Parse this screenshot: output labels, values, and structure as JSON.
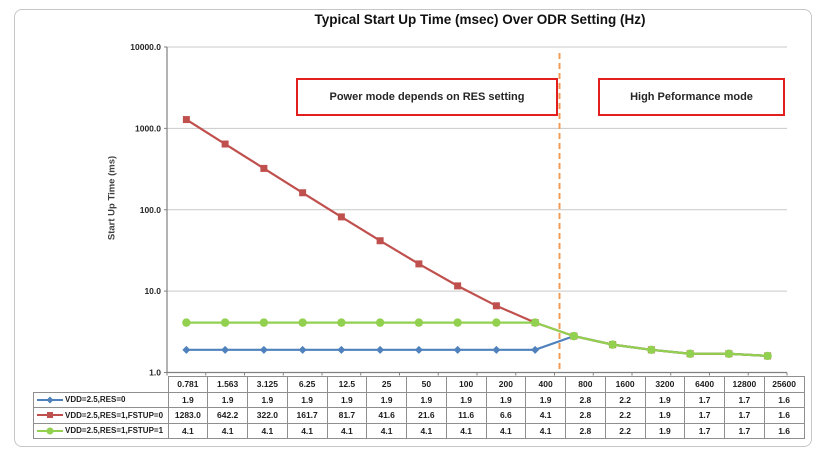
{
  "chart": {
    "title": "Typical Start Up Time (msec) Over ODR Setting (Hz)",
    "ylabel": "Start Up Time (ms)"
  },
  "annotations": {
    "left_box": "Power mode depends on RES setting",
    "right_box": "High Peformance mode"
  },
  "chart_data": {
    "type": "line",
    "title": "Typical Start Up Time (msec) Over ODR Setting (Hz)",
    "xlabel": "",
    "ylabel": "Start Up Time (ms)",
    "x_categories": [
      "0.781",
      "1.563",
      "3.125",
      "6.25",
      "12.5",
      "25",
      "50",
      "100",
      "200",
      "400",
      "800",
      "1600",
      "3200",
      "6400",
      "12800",
      "25600"
    ],
    "y_axis": {
      "scale": "log",
      "min": 1.0,
      "max": 10000.0,
      "tick_labels": [
        "10000.0",
        "1000.0",
        "100.0",
        "10.0",
        "1.0"
      ]
    },
    "grid": true,
    "legend_position": "table-left",
    "series": [
      {
        "name": "VDD=2.5,RES=0",
        "color": "#4F81BD",
        "marker": "diamond",
        "values": [
          1.9,
          1.9,
          1.9,
          1.9,
          1.9,
          1.9,
          1.9,
          1.9,
          1.9,
          1.9,
          2.8,
          2.2,
          1.9,
          1.7,
          1.7,
          1.6
        ]
      },
      {
        "name": "VDD=2.5,RES=1,FSTUP=0",
        "color": "#C0504D",
        "marker": "square",
        "values": [
          1283.0,
          642.2,
          322.0,
          161.7,
          81.7,
          41.6,
          21.6,
          11.6,
          6.6,
          4.1,
          2.8,
          2.2,
          1.9,
          1.7,
          1.7,
          1.6
        ]
      },
      {
        "name": "VDD=2.5,RES=1,FSTUP=1",
        "color": "#92D050",
        "marker": "circle",
        "values": [
          4.1,
          4.1,
          4.1,
          4.1,
          4.1,
          4.1,
          4.1,
          4.1,
          4.1,
          4.1,
          2.8,
          2.2,
          1.9,
          1.7,
          1.7,
          1.6
        ]
      }
    ],
    "divider": {
      "after_category": "400",
      "color": "#F09C57",
      "style": "dashed"
    },
    "annotations": [
      "Power mode depends on RES setting",
      "High Peformance mode"
    ]
  }
}
